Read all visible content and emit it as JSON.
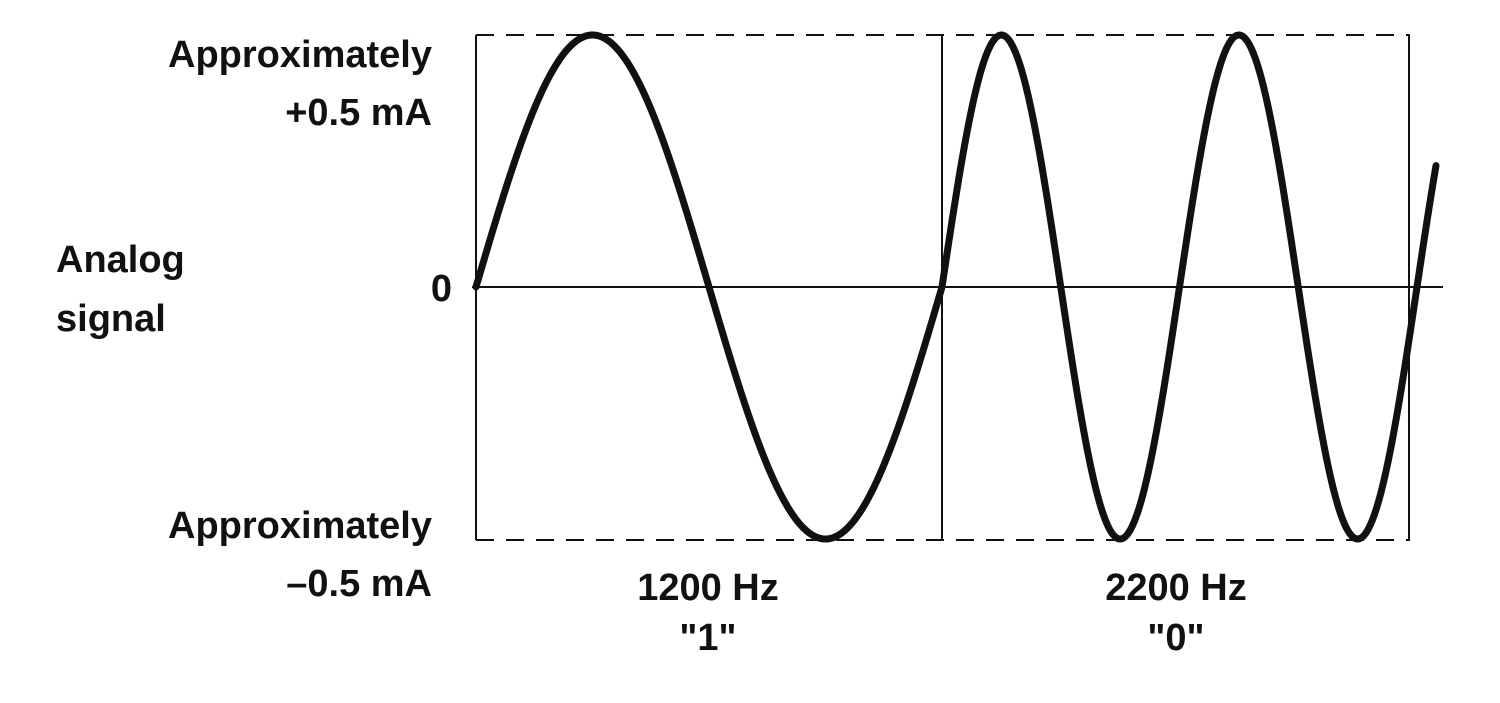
{
  "labels": {
    "top_line1": "Approximately",
    "top_line2": "+0.5 mA",
    "side_line1": "Analog",
    "side_line2": "signal",
    "zero": "0",
    "bottom_line1": "Approximately",
    "bottom_line2": "–0.5 mA",
    "freq1": "1200 Hz",
    "bit1": "\"1\"",
    "freq2": "2200 Hz",
    "bit2": "\"0\""
  },
  "signal": {
    "amplitude_ma": 0.5,
    "segments": [
      {
        "frequency_hz": 1200,
        "bit": "1",
        "cycles": 1
      },
      {
        "frequency_hz": 2200,
        "bit": "0",
        "cycles": 2
      }
    ]
  },
  "colors": {
    "stroke": "#111111",
    "background": "#ffffff"
  }
}
